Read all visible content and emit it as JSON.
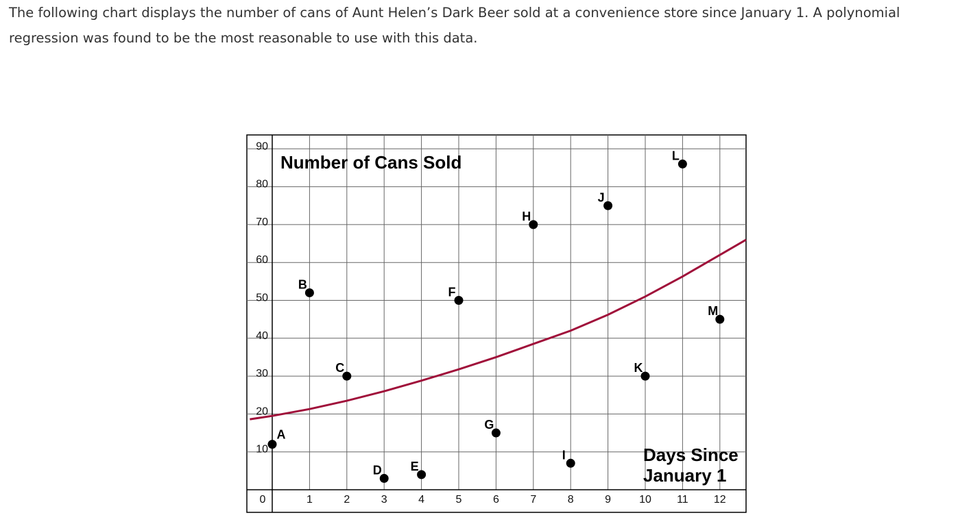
{
  "intro": "The following chart displays the number of cans of Aunt Helen’s Dark Beer sold at a convenience store since January 1. A polynomial regression was found to be the most reasonable to use with this data.",
  "chart_data": {
    "type": "scatter",
    "title": "Number of Cans Sold",
    "xlabel": "Days Since January 1",
    "ylabel": "",
    "xlim": [
      0,
      12.7
    ],
    "ylim": [
      0,
      92
    ],
    "grid": true,
    "x_ticks": [
      "0",
      "1",
      "2",
      "3",
      "4",
      "5",
      "6",
      "7",
      "8",
      "9",
      "10",
      "11",
      "12"
    ],
    "y_ticks": [
      "10",
      "20",
      "30",
      "40",
      "50",
      "60",
      "70",
      "80",
      "90"
    ],
    "points": [
      {
        "label": "A",
        "x": 0,
        "y": 12
      },
      {
        "label": "B",
        "x": 1,
        "y": 52
      },
      {
        "label": "C",
        "x": 2,
        "y": 30
      },
      {
        "label": "D",
        "x": 3,
        "y": 3
      },
      {
        "label": "E",
        "x": 4,
        "y": 4
      },
      {
        "label": "F",
        "x": 5,
        "y": 50
      },
      {
        "label": "G",
        "x": 6,
        "y": 15
      },
      {
        "label": "H",
        "x": 7,
        "y": 70
      },
      {
        "label": "I",
        "x": 8,
        "y": 7
      },
      {
        "label": "J",
        "x": 9,
        "y": 75
      },
      {
        "label": "K",
        "x": 10,
        "y": 30
      },
      {
        "label": "L",
        "x": 11,
        "y": 86
      },
      {
        "label": "M",
        "x": 12,
        "y": 45
      }
    ],
    "regression_curve": {
      "color": "#a0103a",
      "x": [
        -0.6,
        0,
        1,
        2,
        3,
        4,
        5,
        6,
        7,
        8,
        9,
        10,
        11,
        12,
        12.7
      ],
      "y": [
        18.6,
        19.5,
        21.3,
        23.5,
        26,
        28.8,
        31.8,
        35,
        38.5,
        42,
        46.2,
        51,
        56.3,
        62,
        66
      ]
    },
    "point_color": "#000000"
  }
}
